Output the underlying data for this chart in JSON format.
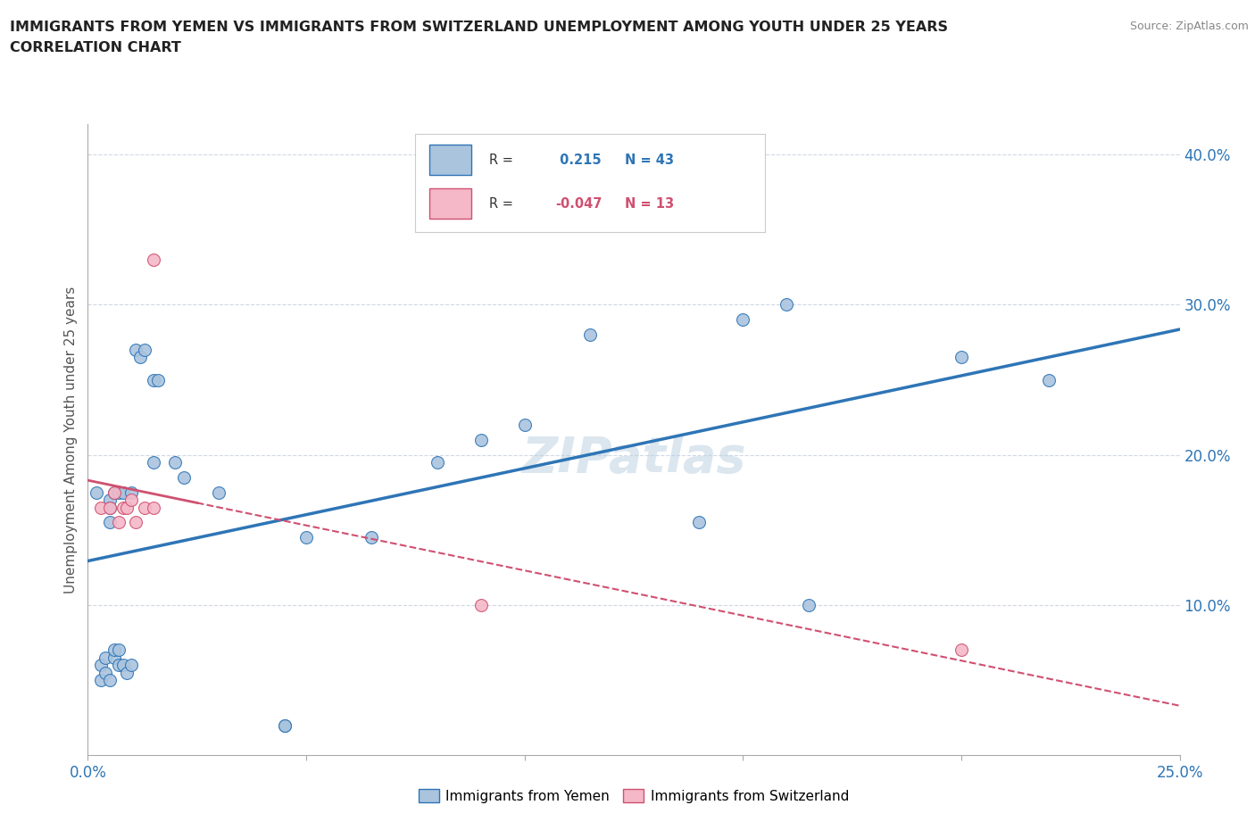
{
  "title_line1": "IMMIGRANTS FROM YEMEN VS IMMIGRANTS FROM SWITZERLAND UNEMPLOYMENT AMONG YOUTH UNDER 25 YEARS",
  "title_line2": "CORRELATION CHART",
  "source": "Source: ZipAtlas.com",
  "watermark": "ZIPatlas",
  "ylabel": "Unemployment Among Youth under 25 years",
  "xlim": [
    0.0,
    0.25
  ],
  "ylim": [
    0.0,
    0.42
  ],
  "grid_color": "#d0d8e4",
  "background_color": "#ffffff",
  "yemen_color": "#aac4de",
  "yemen_line_color": "#2e75b6",
  "switzerland_color": "#f4b8c8",
  "switzerland_line_color": "#d05070",
  "R_yemen": 0.215,
  "N_yemen": 43,
  "R_switzerland": -0.047,
  "N_switzerland": 13,
  "yemen_scatter_x": [
    0.002,
    0.003,
    0.003,
    0.004,
    0.004,
    0.005,
    0.005,
    0.005,
    0.005,
    0.006,
    0.006,
    0.006,
    0.007,
    0.007,
    0.007,
    0.008,
    0.008,
    0.009,
    0.01,
    0.01,
    0.011,
    0.012,
    0.013,
    0.015,
    0.015,
    0.016,
    0.02,
    0.022,
    0.03,
    0.045,
    0.045,
    0.05,
    0.065,
    0.08,
    0.09,
    0.1,
    0.115,
    0.14,
    0.15,
    0.16,
    0.165,
    0.2,
    0.22
  ],
  "yemen_scatter_y": [
    0.175,
    0.06,
    0.05,
    0.065,
    0.055,
    0.17,
    0.165,
    0.155,
    0.05,
    0.065,
    0.07,
    0.175,
    0.06,
    0.07,
    0.175,
    0.06,
    0.175,
    0.055,
    0.06,
    0.175,
    0.27,
    0.265,
    0.27,
    0.195,
    0.25,
    0.25,
    0.195,
    0.185,
    0.175,
    0.02,
    0.02,
    0.145,
    0.145,
    0.195,
    0.21,
    0.22,
    0.28,
    0.155,
    0.29,
    0.3,
    0.1,
    0.265,
    0.25
  ],
  "switzerland_scatter_x": [
    0.003,
    0.005,
    0.006,
    0.007,
    0.008,
    0.009,
    0.01,
    0.011,
    0.013,
    0.015,
    0.015,
    0.09,
    0.2
  ],
  "switzerland_scatter_y": [
    0.165,
    0.165,
    0.175,
    0.155,
    0.165,
    0.165,
    0.17,
    0.155,
    0.165,
    0.165,
    0.33,
    0.1,
    0.07
  ]
}
